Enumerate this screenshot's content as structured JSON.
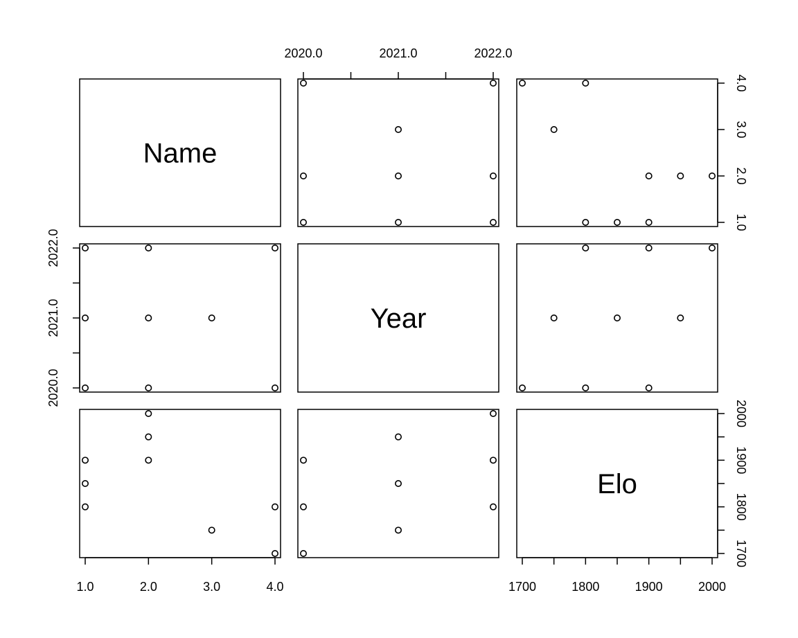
{
  "chart_data": {
    "type": "scatter",
    "variables": [
      {
        "name": "Name",
        "ticks": [
          1,
          2,
          3,
          4
        ],
        "tick_labels": [
          "1.0",
          "2.0",
          "3.0",
          "4.0"
        ]
      },
      {
        "name": "Year",
        "ticks": [
          2020,
          2021,
          2022
        ],
        "tick_labels": [
          "2020.0",
          "2021.0",
          "2022.0"
        ],
        "minor_ticks": [
          2020.5,
          2021.5
        ]
      },
      {
        "name": "Elo",
        "ticks": [
          1700,
          1800,
          1900,
          2000
        ],
        "tick_labels": [
          "1700",
          "1800",
          "1900",
          "2000"
        ],
        "minor_ticks": [
          1750,
          1850,
          1950
        ]
      }
    ],
    "observations": [
      {
        "Name": 1,
        "Year": 2020,
        "Elo": 1800
      },
      {
        "Name": 1,
        "Year": 2021,
        "Elo": 1850
      },
      {
        "Name": 1,
        "Year": 2022,
        "Elo": 1900
      },
      {
        "Name": 2,
        "Year": 2020,
        "Elo": 1900
      },
      {
        "Name": 2,
        "Year": 2021,
        "Elo": 1950
      },
      {
        "Name": 2,
        "Year": 2022,
        "Elo": 2000
      },
      {
        "Name": 3,
        "Year": 2021,
        "Elo": 1750
      },
      {
        "Name": 4,
        "Year": 2020,
        "Elo": 1700
      },
      {
        "Name": 4,
        "Year": 2022,
        "Elo": 1800
      }
    ],
    "axis_ranges": {
      "Name": [
        0.9,
        4.1
      ],
      "Year": [
        1999.9,
        2022.1
      ],
      "Elo": [
        1688,
        2012
      ]
    },
    "grid": false,
    "legend": "none"
  }
}
